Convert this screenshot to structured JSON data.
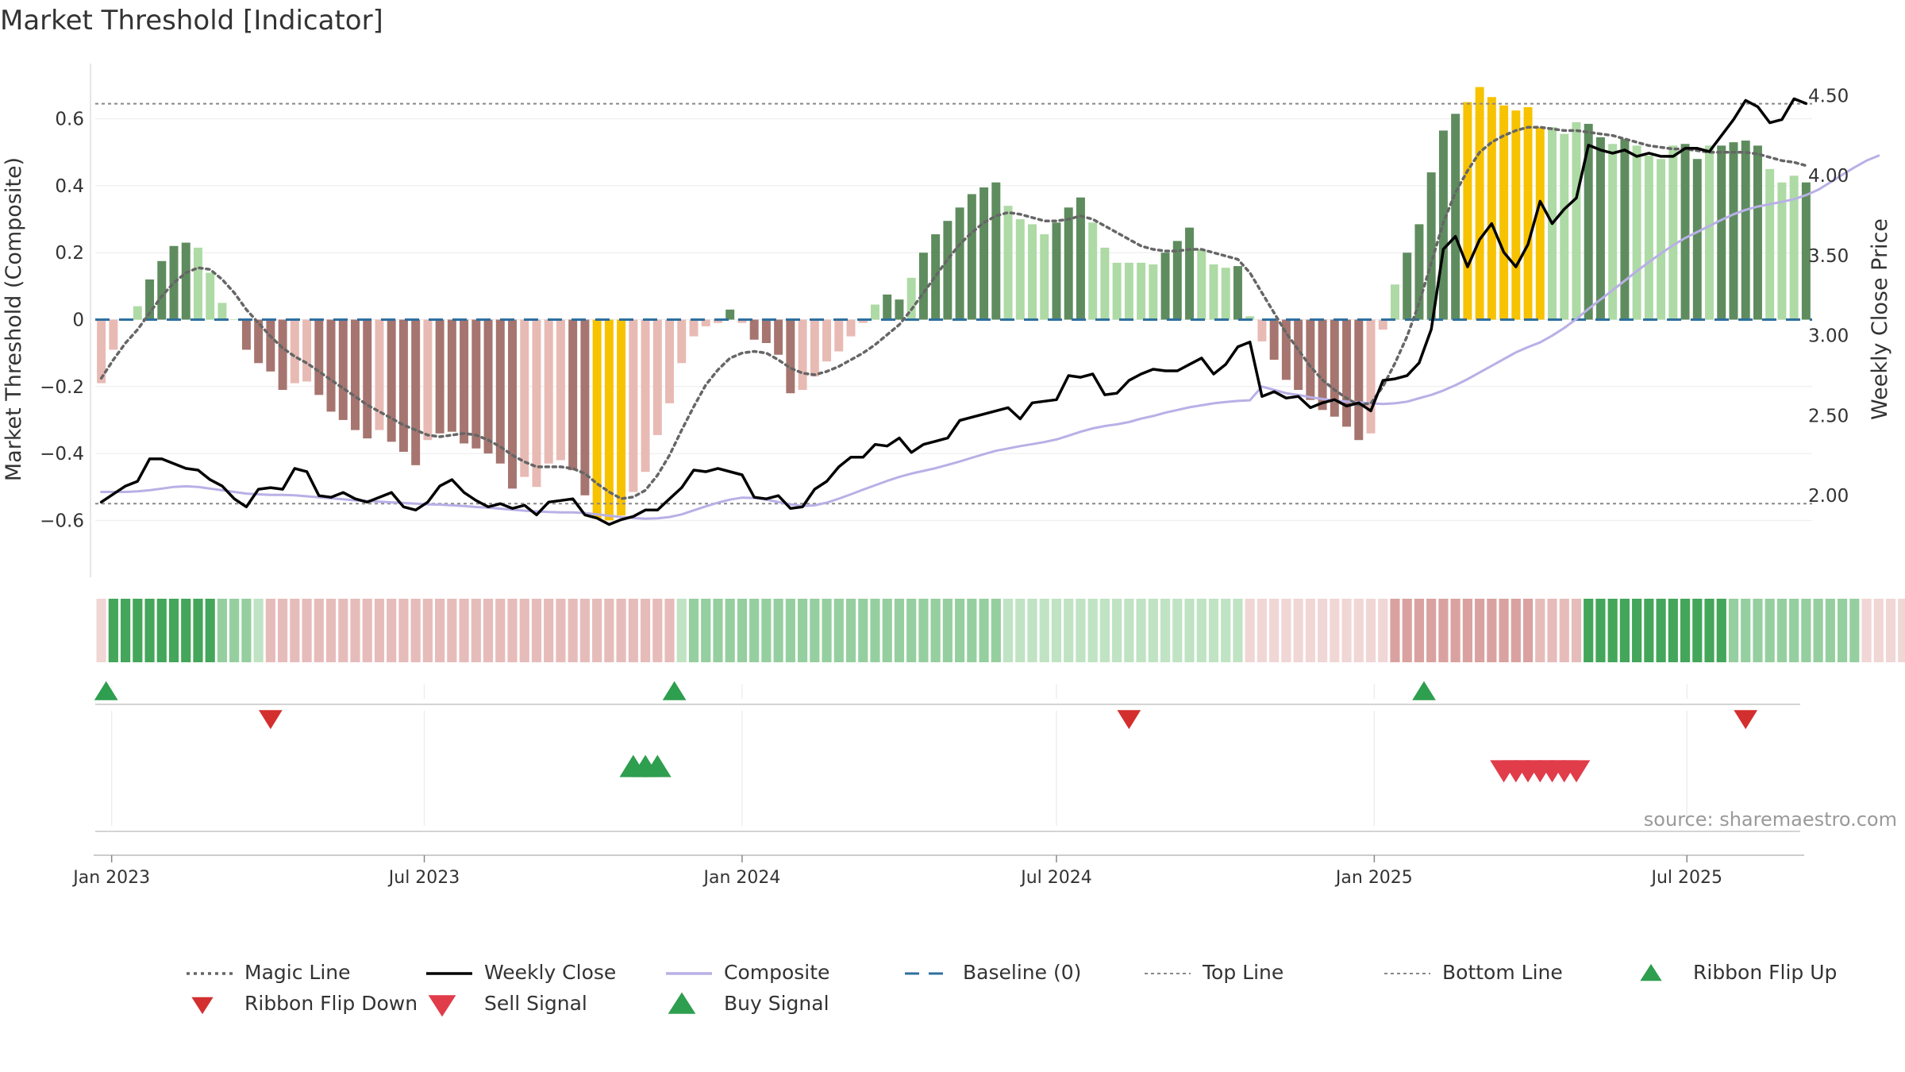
{
  "chart_data": {
    "type": "bar",
    "title": "Market Threshold [Indicator]",
    "ylabel_left": "Market Threshold (Composite)",
    "ylabel_right": "Weekly Close Price",
    "source": "source: sharemaestro.com",
    "x_tick_labels": [
      "Jan 2023",
      "Jul 2023",
      "Jan 2024",
      "Jul 2024",
      "Jan 2025",
      "Jul 2025"
    ],
    "y_left_ticks": [
      0.6,
      0.4,
      0.2,
      0,
      -0.2,
      -0.4,
      -0.6
    ],
    "y_left_tick_labels": [
      "0.6",
      "0.4",
      "0.2",
      "0",
      "−0.2",
      "−0.4",
      "−0.6"
    ],
    "y_right_ticks": [
      4.5,
      4.0,
      3.5,
      3.0,
      2.5,
      2.0
    ],
    "y_right_tick_labels": [
      "4.50",
      "4.00",
      "3.50",
      "3.00",
      "2.50",
      "2.00"
    ],
    "ylim_left": [
      -0.77,
      0.77
    ],
    "ylim_right": [
      1.49,
      4.71
    ],
    "top_line": 0.645,
    "bottom_line": -0.55,
    "baseline": 0,
    "weeks_start": "2022-12-26",
    "bars": [
      -0.19,
      -0.09,
      0,
      0.04,
      0.12,
      0.175,
      0.22,
      0.23,
      0.215,
      0.14,
      0.05,
      0,
      -0.09,
      -0.13,
      -0.155,
      -0.21,
      -0.19,
      -0.185,
      -0.225,
      -0.275,
      -0.3,
      -0.33,
      -0.355,
      -0.33,
      -0.365,
      -0.395,
      -0.435,
      -0.36,
      -0.34,
      -0.335,
      -0.37,
      -0.385,
      -0.4,
      -0.43,
      -0.505,
      -0.47,
      -0.5,
      -0.43,
      -0.42,
      -0.45,
      -0.525,
      -0.595,
      -0.6,
      -0.585,
      -0.515,
      -0.455,
      -0.345,
      -0.25,
      -0.13,
      -0.05,
      -0.02,
      -0.01,
      0.03,
      -0.01,
      -0.06,
      -0.07,
      -0.105,
      -0.22,
      -0.21,
      -0.17,
      -0.125,
      -0.095,
      -0.05,
      -0.01,
      0.045,
      0.075,
      0.06,
      0.125,
      0.2,
      0.255,
      0.295,
      0.335,
      0.375,
      0.395,
      0.41,
      0.34,
      0.3,
      0.285,
      0.255,
      0.29,
      0.335,
      0.365,
      0.29,
      0.215,
      0.17,
      0.17,
      0.17,
      0.165,
      0.2,
      0.235,
      0.275,
      0.21,
      0.165,
      0.155,
      0.16,
      0.01,
      -0.065,
      -0.12,
      -0.18,
      -0.21,
      -0.24,
      -0.27,
      -0.29,
      -0.32,
      -0.36,
      -0.34,
      -0.03,
      0.105,
      0.2,
      0.285,
      0.44,
      0.565,
      0.615,
      0.65,
      0.695,
      0.665,
      0.64,
      0.625,
      0.635,
      0.575,
      0.575,
      0.555,
      0.59,
      0.585,
      0.545,
      0.525,
      0.54,
      0.52,
      0.49,
      0.48,
      0.52,
      0.525,
      0.48,
      0.52,
      0.52,
      0.53,
      0.535,
      0.52,
      0.45,
      0.41,
      0.43,
      0.41
    ],
    "bar_state": [
      "lr",
      "lr",
      "lg",
      "lg",
      "dg",
      "dg",
      "dg",
      "dg",
      "lg",
      "lg",
      "lg",
      "lg",
      "dr",
      "dr",
      "dr",
      "dr",
      "lr",
      "lr",
      "dr",
      "dr",
      "dr",
      "dr",
      "dr",
      "lr",
      "dr",
      "dr",
      "dr",
      "lr",
      "dr",
      "dr",
      "dr",
      "dr",
      "dr",
      "dr",
      "dr",
      "lr",
      "lr",
      "lr",
      "lr",
      "dr",
      "dr",
      "y",
      "y",
      "y",
      "lr",
      "lr",
      "lr",
      "lr",
      "lr",
      "lr",
      "lr",
      "lr",
      "dg",
      "lr",
      "dr",
      "dr",
      "dr",
      "dr",
      "lr",
      "lr",
      "lr",
      "lr",
      "lr",
      "lr",
      "lg",
      "dg",
      "dg",
      "lg",
      "dg",
      "dg",
      "dg",
      "dg",
      "dg",
      "dg",
      "dg",
      "lg",
      "lg",
      "lg",
      "lg",
      "dg",
      "dg",
      "dg",
      "lg",
      "lg",
      "lg",
      "lg",
      "lg",
      "lg",
      "dg",
      "dg",
      "dg",
      "lg",
      "lg",
      "lg",
      "dg",
      "lg",
      "lr",
      "dr",
      "dr",
      "dr",
      "dr",
      "dr",
      "dr",
      "dr",
      "dr",
      "lr",
      "lr",
      "lg",
      "dg",
      "dg",
      "dg",
      "dg",
      "dg",
      "y",
      "y",
      "y",
      "y",
      "y",
      "y",
      "y",
      "lg",
      "lg",
      "lg",
      "dg",
      "dg",
      "lg",
      "dg",
      "lg",
      "lg",
      "lg",
      "lg",
      "dg",
      "dg",
      "lg",
      "dg",
      "dg",
      "dg",
      "dg",
      "lg",
      "lg",
      "lg",
      "dg",
      "lg"
    ],
    "series": [
      {
        "name": "Magic Line",
        "color": "#666666",
        "style": "dotted",
        "axis": "left",
        "values": [
          -0.175,
          -0.12,
          -0.07,
          -0.03,
          0.02,
          0.07,
          0.11,
          0.14,
          0.155,
          0.15,
          0.12,
          0.08,
          0.03,
          -0.01,
          -0.05,
          -0.085,
          -0.11,
          -0.13,
          -0.155,
          -0.18,
          -0.205,
          -0.23,
          -0.255,
          -0.275,
          -0.295,
          -0.315,
          -0.33,
          -0.345,
          -0.35,
          -0.345,
          -0.34,
          -0.345,
          -0.36,
          -0.38,
          -0.405,
          -0.425,
          -0.44,
          -0.44,
          -0.44,
          -0.445,
          -0.46,
          -0.49,
          -0.515,
          -0.535,
          -0.53,
          -0.51,
          -0.465,
          -0.405,
          -0.33,
          -0.26,
          -0.195,
          -0.15,
          -0.115,
          -0.1,
          -0.095,
          -0.1,
          -0.12,
          -0.145,
          -0.16,
          -0.165,
          -0.155,
          -0.14,
          -0.12,
          -0.1,
          -0.075,
          -0.045,
          -0.015,
          0.03,
          0.08,
          0.13,
          0.18,
          0.225,
          0.26,
          0.29,
          0.31,
          0.32,
          0.315,
          0.305,
          0.295,
          0.295,
          0.3,
          0.31,
          0.3,
          0.28,
          0.26,
          0.24,
          0.22,
          0.21,
          0.205,
          0.205,
          0.21,
          0.21,
          0.2,
          0.19,
          0.18,
          0.14,
          0.08,
          0.02,
          -0.04,
          -0.09,
          -0.14,
          -0.18,
          -0.21,
          -0.235,
          -0.255,
          -0.25,
          -0.2,
          -0.13,
          -0.05,
          0.05,
          0.17,
          0.29,
          0.38,
          0.445,
          0.5,
          0.53,
          0.55,
          0.565,
          0.575,
          0.575,
          0.57,
          0.565,
          0.565,
          0.56,
          0.555,
          0.55,
          0.54,
          0.53,
          0.52,
          0.515,
          0.51,
          0.51,
          0.505,
          0.5,
          0.5,
          0.5,
          0.5,
          0.495,
          0.485,
          0.475,
          0.47,
          0.46
        ]
      },
      {
        "name": "Weekly Close",
        "color": "#000000",
        "style": "solid",
        "axis": "right",
        "values": [
          1.96,
          2.01,
          2.06,
          2.09,
          2.23,
          2.23,
          2.2,
          2.17,
          2.16,
          2.1,
          2.06,
          1.98,
          1.93,
          2.04,
          2.05,
          2.04,
          2.17,
          2.15,
          2.0,
          1.99,
          2.02,
          1.98,
          1.96,
          1.99,
          2.02,
          1.93,
          1.91,
          1.96,
          2.06,
          2.1,
          2.02,
          1.97,
          1.93,
          1.95,
          1.92,
          1.94,
          1.88,
          1.96,
          1.97,
          1.98,
          1.88,
          1.86,
          1.82,
          1.85,
          1.87,
          1.91,
          1.91,
          1.98,
          2.05,
          2.16,
          2.15,
          2.17,
          2.15,
          2.13,
          1.99,
          1.98,
          2.0,
          1.92,
          1.93,
          2.04,
          2.09,
          2.18,
          2.24,
          2.24,
          2.32,
          2.31,
          2.36,
          2.27,
          2.32,
          2.34,
          2.36,
          2.47,
          2.49,
          2.51,
          2.53,
          2.55,
          2.48,
          2.58,
          2.59,
          2.6,
          2.75,
          2.74,
          2.76,
          2.63,
          2.64,
          2.72,
          2.76,
          2.79,
          2.78,
          2.78,
          2.82,
          2.86,
          2.76,
          2.82,
          2.93,
          2.96,
          2.62,
          2.65,
          2.61,
          2.62,
          2.55,
          2.58,
          2.6,
          2.56,
          2.58,
          2.53,
          2.72,
          2.73,
          2.75,
          2.83,
          3.04,
          3.54,
          3.62,
          3.43,
          3.6,
          3.7,
          3.52,
          3.43,
          3.57,
          3.84,
          3.7,
          3.79,
          3.86,
          4.19,
          4.16,
          4.14,
          4.16,
          4.12,
          4.14,
          4.12,
          4.12,
          4.17,
          4.17,
          4.15,
          4.25,
          4.35,
          4.47,
          4.43,
          4.33,
          4.35,
          4.48,
          4.45
        ]
      },
      {
        "name": "Composite",
        "color": "#b8b0e6",
        "style": "solid",
        "axis": "left",
        "values": [
          -0.515,
          -0.515,
          -0.515,
          -0.513,
          -0.51,
          -0.505,
          -0.5,
          -0.498,
          -0.5,
          -0.505,
          -0.51,
          -0.515,
          -0.52,
          -0.522,
          -0.524,
          -0.524,
          -0.525,
          -0.528,
          -0.531,
          -0.534,
          -0.537,
          -0.54,
          -0.542,
          -0.544,
          -0.546,
          -0.548,
          -0.55,
          -0.552,
          -0.553,
          -0.555,
          -0.557,
          -0.56,
          -0.562,
          -0.565,
          -0.568,
          -0.571,
          -0.573,
          -0.575,
          -0.576,
          -0.576,
          -0.578,
          -0.582,
          -0.586,
          -0.59,
          -0.593,
          -0.595,
          -0.594,
          -0.59,
          -0.582,
          -0.57,
          -0.558,
          -0.547,
          -0.538,
          -0.532,
          -0.533,
          -0.538,
          -0.545,
          -0.552,
          -0.557,
          -0.555,
          -0.547,
          -0.535,
          -0.522,
          -0.508,
          -0.495,
          -0.482,
          -0.47,
          -0.46,
          -0.452,
          -0.444,
          -0.434,
          -0.424,
          -0.413,
          -0.402,
          -0.392,
          -0.385,
          -0.378,
          -0.372,
          -0.366,
          -0.358,
          -0.347,
          -0.335,
          -0.325,
          -0.318,
          -0.313,
          -0.306,
          -0.296,
          -0.288,
          -0.278,
          -0.27,
          -0.262,
          -0.256,
          -0.25,
          -0.246,
          -0.243,
          -0.241,
          -0.2,
          -0.21,
          -0.22,
          -0.225,
          -0.232,
          -0.237,
          -0.242,
          -0.245,
          -0.247,
          -0.25,
          -0.252,
          -0.25,
          -0.245,
          -0.235,
          -0.225,
          -0.212,
          -0.196,
          -0.178,
          -0.158,
          -0.138,
          -0.118,
          -0.098,
          -0.082,
          -0.068,
          -0.048,
          -0.025,
          0.002,
          0.032,
          0.06,
          0.088,
          0.116,
          0.145,
          0.172,
          0.198,
          0.222,
          0.244,
          0.262,
          0.28,
          0.298,
          0.315,
          0.328,
          0.338,
          0.345,
          0.352,
          0.36,
          0.372,
          0.388,
          0.41,
          0.433,
          0.455,
          0.475,
          0.49
        ]
      }
    ],
    "ribbon": [
      "lr",
      "dg",
      "dg",
      "dg",
      "dg",
      "dg",
      "dg",
      "dg",
      "dg",
      "dg",
      "mg",
      "mg",
      "mg",
      "lg",
      "mr",
      "mr",
      "mr",
      "mr",
      "mr",
      "mr",
      "mr",
      "mr",
      "mr",
      "mr",
      "mr",
      "mr",
      "mr",
      "mr",
      "mr",
      "mr",
      "mr",
      "mr",
      "mr",
      "mr",
      "mr",
      "mr",
      "mr",
      "mr",
      "mr",
      "mr",
      "mr",
      "mr",
      "mr",
      "mr",
      "mr",
      "mr",
      "mr",
      "mr",
      "lg",
      "mg",
      "mg",
      "mg",
      "mg",
      "mg",
      "mg",
      "mg",
      "mg",
      "mg",
      "mg",
      "mg",
      "mg",
      "mg",
      "mg",
      "mg",
      "mg",
      "mg",
      "mg",
      "mg",
      "mg",
      "mg",
      "mg",
      "mg",
      "mg",
      "mg",
      "mg",
      "lg",
      "lg",
      "lg",
      "lg",
      "lg",
      "lg",
      "lg",
      "lg",
      "lg",
      "lg",
      "lg",
      "lg",
      "lg",
      "lg",
      "lg",
      "lg",
      "lg",
      "lg",
      "lg",
      "lg",
      "lr",
      "lr",
      "lr",
      "lr",
      "lr",
      "lr",
      "lr",
      "lr",
      "lr",
      "lr",
      "lr",
      "lr",
      "dr",
      "dr",
      "dr",
      "dr",
      "dr",
      "dr",
      "dr",
      "dr",
      "dr",
      "dr",
      "dr",
      "dr",
      "mr",
      "mr",
      "mr",
      "mr",
      "dg",
      "dg",
      "dg",
      "dg",
      "dg",
      "dg",
      "dg",
      "dg",
      "dg",
      "dg",
      "dg",
      "dg",
      "mg",
      "mg",
      "mg",
      "mg",
      "mg",
      "mg",
      "mg",
      "mg",
      "mg",
      "mg",
      "mg",
      "lr",
      "lr",
      "lr",
      "lr",
      "lr",
      "lr",
      "lr",
      "lr",
      "lr",
      "lr",
      "lr",
      "lr"
    ],
    "ribbon_flip_up_weeks": [
      1,
      48,
      110
    ],
    "ribbon_flip_down_weeks": [
      14,
      85,
      136
    ],
    "buy_signal_weeks": [
      44,
      45,
      46
    ],
    "sell_signal_weeks": [
      116,
      117,
      118,
      119,
      120,
      121,
      122
    ],
    "legend_position": "bottom",
    "legend": [
      {
        "name": "Magic Line",
        "symbol": "dotted",
        "color": "#666666"
      },
      {
        "name": "Weekly Close",
        "symbol": "line",
        "color": "#000000"
      },
      {
        "name": "Composite",
        "symbol": "line",
        "color": "#b8b0e6"
      },
      {
        "name": "Baseline (0)",
        "symbol": "dashed",
        "color": "#2f6f9f"
      },
      {
        "name": "Top Line",
        "symbol": "dotted-thin",
        "color": "#888888"
      },
      {
        "name": "Bottom Line",
        "symbol": "dotted-thin",
        "color": "#888888"
      },
      {
        "name": "Ribbon Flip Up",
        "symbol": "triangle-up",
        "color": "#2e9e4f"
      },
      {
        "name": "Ribbon Flip Down",
        "symbol": "triangle-down",
        "color": "#d32f2f"
      },
      {
        "name": "Sell Signal",
        "symbol": "triangle-down",
        "color": "#e03c4a"
      },
      {
        "name": "Buy Signal",
        "symbol": "triangle-up",
        "color": "#2e9e4f"
      }
    ],
    "colors": {
      "bar_dark_green": "#5e8c5e",
      "bar_light_green": "#aedaa5",
      "bar_dark_red": "#a6756f",
      "bar_light_red": "#e8bab4",
      "bar_yellow": "#f7c200",
      "ribbon_dark_green": "#44a65a",
      "ribbon_mid_green": "#96cf9f",
      "ribbon_light_green": "#bfe3c3",
      "ribbon_dark_red": "#d9a2a0",
      "ribbon_mid_red": "#e6bcba",
      "ribbon_light_red": "#f0d6d5",
      "baseline": "#2f6f9f",
      "guide_line": "#888888"
    }
  }
}
